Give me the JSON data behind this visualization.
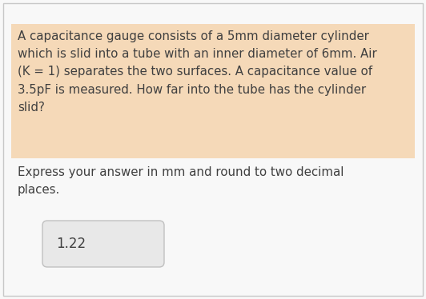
{
  "question_text_highlighted": "A capacitance gauge consists of a 5mm diameter cylinder\nwhich is slid into a tube with an inner diameter of 6mm. Air\n(K = 1) separates the two surfaces. A capacitance value of\n3.5pF is measured. How far into the tube has the cylinder\nslid?",
  "question_text_normal": "Express your answer in mm and round to two decimal\nplaces.",
  "answer": "1.22",
  "bg_color": "#f8f8f8",
  "highlight_color": "#f5d9b8",
  "answer_box_facecolor": "#e8e8e8",
  "answer_box_edgecolor": "#c0c0c0",
  "text_color": "#404040",
  "outer_border_color": "#c8c8c8",
  "font_size_question": 10.8,
  "font_size_answer": 12.0,
  "fig_width": 5.32,
  "fig_height": 3.74,
  "dpi": 100
}
